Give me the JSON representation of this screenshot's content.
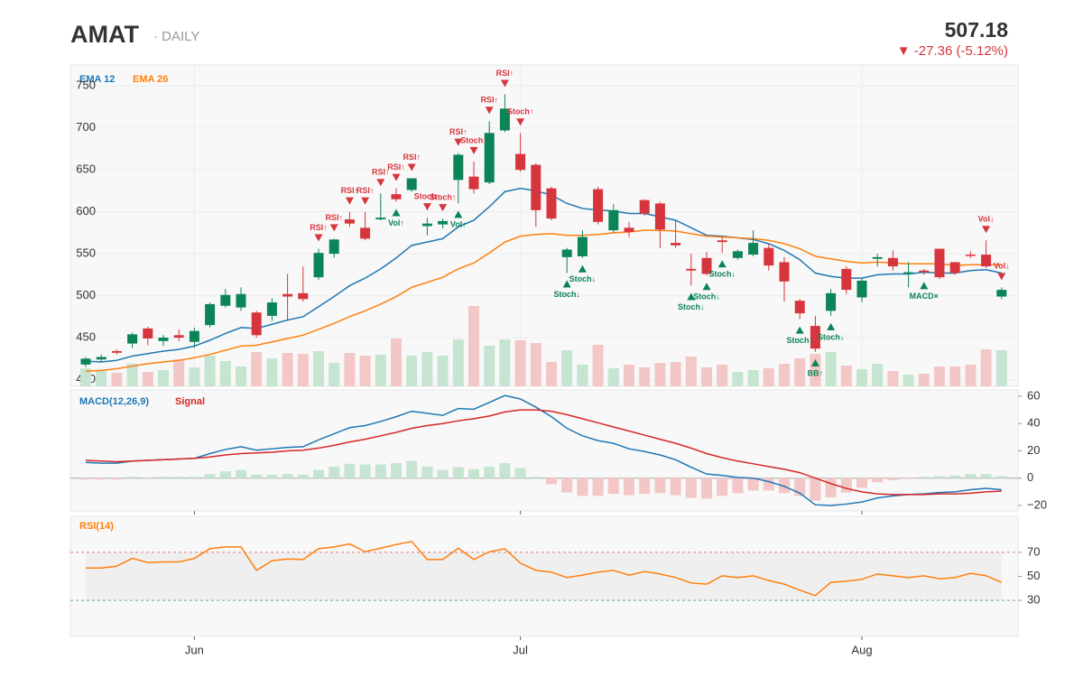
{
  "header": {
    "symbol": "AMAT",
    "interval": "· DAILY",
    "price": "507.18",
    "change": "▼ -27.36  (-5.12%)"
  },
  "chart_data": [
    {
      "type": "candlestick",
      "categories": [
        null,
        null,
        null,
        null,
        null,
        null,
        null,
        "Jun",
        null,
        null,
        null,
        null,
        null,
        null,
        null,
        null,
        null,
        null,
        null,
        null,
        null,
        null,
        null,
        null,
        null,
        null,
        null,
        null,
        "Jul",
        null,
        null,
        null,
        null,
        null,
        null,
        null,
        null,
        null,
        null,
        null,
        null,
        null,
        null,
        null,
        null,
        null,
        null,
        null,
        null,
        null,
        "Aug",
        null,
        null,
        null,
        null,
        null,
        null,
        null,
        null,
        null
      ],
      "open": [
        418,
        424,
        434,
        443,
        461,
        446,
        453,
        445,
        465,
        488,
        486,
        480,
        476,
        502,
        503,
        522,
        550,
        591,
        581,
        591,
        621,
        626,
        583,
        585,
        638,
        642,
        635,
        697,
        669,
        656,
        628,
        546,
        547,
        627,
        578,
        581,
        614,
        610,
        563,
        532,
        545,
        566,
        545,
        549,
        557,
        540,
        494,
        464,
        482,
        532,
        498,
        544,
        545,
        526,
        530,
        556,
        540,
        549,
        549,
        499
      ],
      "high": [
        427,
        430,
        436,
        456,
        463,
        453,
        460,
        462,
        492,
        508,
        510,
        482,
        497,
        526,
        535,
        556,
        568,
        600,
        600,
        622,
        628,
        640,
        593,
        592,
        670,
        660,
        708,
        740,
        694,
        658,
        630,
        557,
        578,
        630,
        609,
        588,
        615,
        612,
        590,
        550,
        552,
        570,
        555,
        578,
        562,
        546,
        496,
        476,
        508,
        535,
        521,
        550,
        554,
        540,
        532,
        556,
        540,
        553,
        566,
        510
      ],
      "low": [
        415,
        421,
        430,
        438,
        441,
        440,
        446,
        438,
        462,
        486,
        482,
        450,
        470,
        470,
        493,
        519,
        545,
        582,
        566,
        590,
        612,
        624,
        572,
        580,
        610,
        622,
        633,
        695,
        648,
        582,
        590,
        527,
        545,
        585,
        575,
        570,
        595,
        557,
        557,
        512,
        524,
        551,
        543,
        547,
        530,
        493,
        472,
        433,
        476,
        502,
        492,
        535,
        530,
        510,
        525,
        520,
        525,
        545,
        533,
        496
      ],
      "close": [
        425,
        427,
        432,
        454,
        449,
        450,
        450,
        458,
        490,
        501,
        502,
        453,
        492,
        499,
        496,
        551,
        567,
        586,
        568,
        593,
        615,
        640,
        586,
        589,
        668,
        627,
        694,
        723,
        650,
        602,
        592,
        555,
        570,
        588,
        602,
        576,
        598,
        579,
        560,
        530,
        526,
        564,
        553,
        563,
        536,
        517,
        479,
        437,
        503,
        507,
        518,
        546,
        535,
        528,
        528,
        522,
        527,
        548,
        535,
        507
      ],
      "volume": [
        20,
        18,
        15,
        25,
        16,
        18,
        30,
        21,
        34,
        28,
        22,
        38,
        31,
        37,
        36,
        39,
        26,
        37,
        34,
        35,
        53,
        34,
        38,
        34,
        52,
        89,
        45,
        52,
        51,
        48,
        27,
        40,
        24,
        46,
        20,
        24,
        21,
        26,
        27,
        33,
        21,
        24,
        16,
        18,
        20,
        25,
        31,
        36,
        38,
        23,
        19,
        25,
        17,
        13,
        14,
        22,
        22,
        24,
        41,
        40
      ],
      "vlim": [
        0,
        100
      ],
      "up_color": "#0b8457",
      "down_color": "#d7353d",
      "volume_up_color": "#c5e5d1",
      "volume_down_color": "#f4c7c7",
      "ylim": [
        392,
        775
      ],
      "yticks": [
        400,
        450,
        500,
        550,
        600,
        650,
        700,
        750
      ],
      "grid": true,
      "series": [
        {
          "name": "EMA 12",
          "color": "#1f77b4",
          "values": [
            422,
            421,
            423,
            428,
            431,
            434,
            436,
            440,
            447,
            455,
            462,
            461,
            466,
            471,
            475,
            487,
            499,
            512,
            521,
            532,
            545,
            560,
            564,
            568,
            582,
            590,
            606,
            624,
            628,
            625,
            620,
            610,
            604,
            602,
            601,
            598,
            598,
            594,
            590,
            581,
            572,
            571,
            569,
            567,
            562,
            554,
            543,
            527,
            523,
            521,
            521,
            525,
            526,
            526,
            528,
            527,
            527,
            530,
            531,
            527
          ]
        },
        {
          "name": "EMA 26",
          "color": "#ff7f0e",
          "values": [
            410,
            411,
            413,
            416,
            419,
            421,
            423,
            426,
            430,
            435,
            440,
            441,
            445,
            449,
            453,
            460,
            467,
            475,
            482,
            490,
            499,
            510,
            516,
            522,
            532,
            539,
            551,
            564,
            571,
            573,
            574,
            572,
            572,
            573,
            575,
            576,
            578,
            578,
            577,
            574,
            571,
            570,
            569,
            568,
            566,
            562,
            556,
            547,
            544,
            541,
            539,
            540,
            539,
            538,
            538,
            538,
            536,
            537,
            537,
            537
          ]
        }
      ],
      "signal_colors": {
        "down": "#d7353d",
        "up": "#0b8457"
      },
      "signals": [
        {
          "index": 15,
          "label": "RSI↑",
          "dir": "down"
        },
        {
          "index": 16,
          "label": "RSI↑",
          "dir": "down"
        },
        {
          "index": 17,
          "label": "RSI↑",
          "dir": "down"
        },
        {
          "index": 18,
          "label": "RSI↑",
          "dir": "down"
        },
        {
          "index": 19,
          "label": "RSI↑",
          "dir": "down"
        },
        {
          "index": 20,
          "label": "RSI↑",
          "dir": "down"
        },
        {
          "index": 21,
          "label": "RSI↑",
          "dir": "down"
        },
        {
          "index": 22,
          "label": "Stoch↑",
          "dir": "down"
        },
        {
          "index": 23,
          "label": "Stoch↑",
          "dir": "down"
        },
        {
          "index": 24,
          "label": "RSI↑",
          "dir": "down"
        },
        {
          "index": 25,
          "label": "Stoch↑",
          "dir": "down"
        },
        {
          "index": 26,
          "label": "RSI↑",
          "dir": "down"
        },
        {
          "index": 27,
          "label": "RSI↑",
          "dir": "down"
        },
        {
          "index": 28,
          "label": "Stoch↑",
          "dir": "down"
        },
        {
          "index": 58,
          "label": "Vol↓",
          "dir": "down"
        },
        {
          "index": 59,
          "label": "Vol↓",
          "dir": "down"
        },
        {
          "index": 20,
          "label": "Vol↑",
          "dir": "up"
        },
        {
          "index": 24,
          "label": "Vol↑",
          "dir": "up"
        },
        {
          "index": 31,
          "label": "Stoch↓",
          "dir": "up"
        },
        {
          "index": 32,
          "label": "Stoch↓",
          "dir": "up"
        },
        {
          "index": 39,
          "label": "Stoch↓",
          "dir": "up"
        },
        {
          "index": 40,
          "label": "Stoch↓",
          "dir": "up"
        },
        {
          "index": 41,
          "label": "Stoch↓",
          "dir": "up"
        },
        {
          "index": 46,
          "label": "Stoch↓",
          "dir": "up"
        },
        {
          "index": 47,
          "label": "BB↑",
          "dir": "up"
        },
        {
          "index": 48,
          "label": "Stoch↓",
          "dir": "up"
        },
        {
          "index": 54,
          "label": "MACD×",
          "dir": "up"
        }
      ]
    },
    {
      "type": "macd",
      "title": "MACD(12,26,9)",
      "ylim": [
        -24,
        64.6
      ],
      "yticks": [
        {
          "value": -20,
          "label": "−20"
        },
        0,
        20,
        40,
        60
      ],
      "histogram": [
        -1,
        -1,
        -1,
        1,
        0.5,
        1,
        1,
        1,
        3,
        5,
        6,
        2.5,
        2.5,
        3,
        2.5,
        6,
        8.5,
        10.5,
        10,
        10,
        11,
        12.5,
        8.5,
        6,
        8,
        6.5,
        8.5,
        11,
        7.5,
        1,
        -4.5,
        -10.5,
        -13,
        -13,
        -11.5,
        -12.5,
        -11.5,
        -11,
        -12.5,
        -14.5,
        -15,
        -13,
        -11,
        -9,
        -9,
        -11,
        -13,
        -16.5,
        -14,
        -10.5,
        -7,
        -3,
        -1.5,
        -0.5,
        1,
        1.5,
        2,
        3,
        3,
        1.5
      ],
      "histogram_up_color": "#c5e5d1",
      "histogram_down_color": "#f4c7c7",
      "series": [
        {
          "name": "MACD",
          "color": "#1f77b4",
          "values": [
            11.5,
            11,
            11,
            12.5,
            13,
            13.5,
            14,
            14.5,
            18,
            21,
            23,
            20.5,
            21.5,
            22.5,
            23,
            28,
            32.5,
            37,
            38.5,
            41.5,
            45,
            49,
            47.5,
            46,
            51,
            50.5,
            55.5,
            60.5,
            58,
            52,
            45,
            36.5,
            31,
            27.5,
            25.5,
            21.5,
            19.5,
            17,
            13.5,
            8,
            3,
            2,
            0.5,
            0,
            -2.5,
            -6,
            -11,
            -19.5,
            -20,
            -19,
            -17.5,
            -14.5,
            -13,
            -12,
            -11.5,
            -10.5,
            -10,
            -8.5,
            -7.5,
            -8.5
          ]
        },
        {
          "name": "Signal",
          "color": "#d62728",
          "values": [
            13,
            12.5,
            12,
            12.5,
            13,
            13.5,
            14,
            14.5,
            15.5,
            17,
            18,
            18.5,
            19,
            20,
            20.5,
            22,
            24,
            26.5,
            28.5,
            31,
            33.5,
            36.5,
            38.5,
            40,
            42,
            43.5,
            45.5,
            48.5,
            50,
            50,
            49,
            46.5,
            43.5,
            40.5,
            37.5,
            34.5,
            31.5,
            28.5,
            25.5,
            22,
            18,
            15,
            12.5,
            10.5,
            8.5,
            6.5,
            4,
            0,
            -4,
            -7.5,
            -10,
            -11.5,
            -12,
            -12,
            -12,
            -11.5,
            -11.5,
            -11,
            -10,
            -9.5
          ]
        }
      ]
    },
    {
      "type": "rsi",
      "ylim": [
        0,
        100
      ],
      "yticks": [
        30,
        50,
        70
      ],
      "reference_lines": [
        {
          "value": 70,
          "color": "#e07b7b"
        },
        {
          "value": 30,
          "color": "#6aa89a"
        }
      ],
      "series": [
        {
          "name": "RSI(14)",
          "color": "#ff7f0e",
          "values": [
            57,
            57,
            58.5,
            65,
            61.5,
            62,
            62,
            65,
            73,
            74.5,
            74.5,
            55,
            63,
            64.5,
            64,
            73,
            74.5,
            77,
            70.5,
            73.5,
            76.5,
            79,
            64,
            64,
            73.5,
            64,
            70.5,
            73,
            61,
            55,
            53.5,
            49,
            51,
            53.5,
            55,
            51,
            54,
            52,
            49,
            44.5,
            43.5,
            50.5,
            49,
            50.5,
            46.5,
            43.5,
            38.5,
            34,
            45,
            46,
            47.5,
            52,
            50.5,
            49,
            50.5,
            48,
            49,
            52.5,
            50.5,
            45
          ]
        }
      ]
    }
  ]
}
